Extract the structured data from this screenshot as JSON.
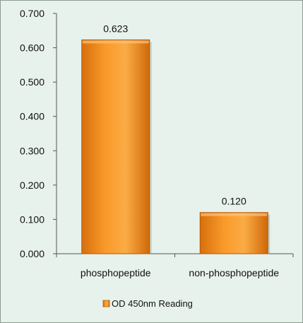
{
  "chart_data": {
    "type": "bar",
    "categories": [
      "phosphopeptide",
      "non-phosphopeptide"
    ],
    "series": [
      {
        "name": "OD 450nm Reading",
        "values": [
          0.623,
          0.12
        ],
        "color": "#f7941d"
      }
    ],
    "data_labels": [
      "0.623",
      "0.120"
    ],
    "y_ticks": [
      "0.000",
      "0.100",
      "0.200",
      "0.300",
      "0.400",
      "0.500",
      "0.600",
      "0.700"
    ],
    "ylim": [
      0,
      0.7
    ],
    "grid": false,
    "legend": {
      "position": "bottom",
      "label": "OD 450nm Reading"
    },
    "colors": {
      "background": "#e7f2ec",
      "bar": "#f7941d",
      "bar_dark": "#c45f06",
      "axis": "#555555"
    }
  }
}
